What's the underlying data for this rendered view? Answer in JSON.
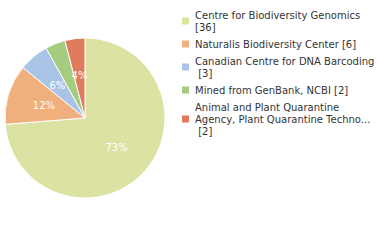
{
  "chart_data": {
    "type": "pie",
    "categories": [
      "Centre for Biodiversity Genomics [36]",
      "Naturalis Biodiversity Center [6]",
      "Canadian Centre for DNA Barcoding [3]",
      "Mined from GenBank, NCBI [2]",
      "Animal and Plant Quarantine Agency, Plant Quarantine Techno... [2]"
    ],
    "values": [
      73,
      12,
      6,
      4,
      4
    ],
    "value_labels": [
      "73%",
      "12%",
      "6%",
      "4%",
      "4%"
    ],
    "colors": [
      "#dce2a1",
      "#f0b07e",
      "#a9c4e6",
      "#a6cc80",
      "#e07b5c"
    ],
    "data_labels": true,
    "legend": "right"
  }
}
